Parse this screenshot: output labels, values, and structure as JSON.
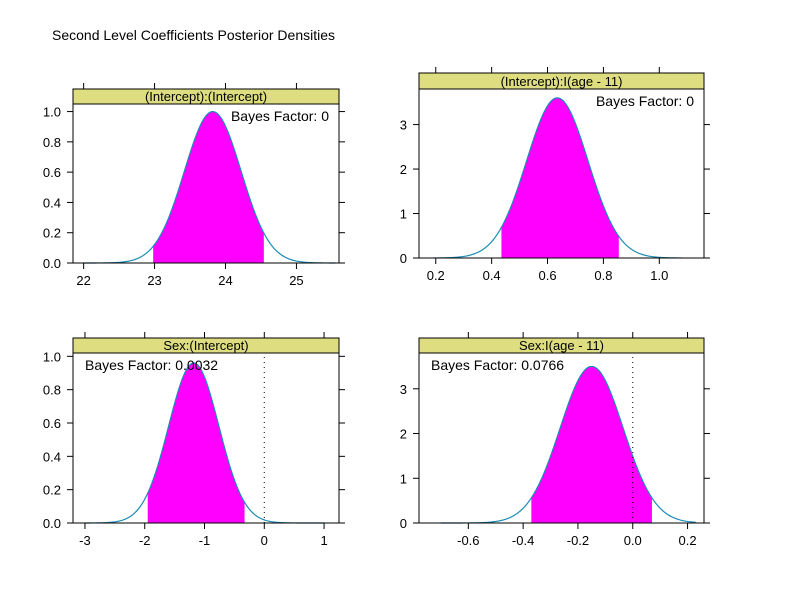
{
  "figure": {
    "title": "Second Level Coefficients Posterior Densities",
    "strip_color": "#dede80",
    "curve_color": "#1a8cb4",
    "fill_color": "#ff00ff"
  },
  "chart_data": [
    {
      "type": "area",
      "strip": "(Intercept):(Intercept)",
      "annotation": "Bayes Factor: 0",
      "annotation_position": "top-right",
      "xlim": [
        21.85,
        25.6
      ],
      "ylim": [
        0,
        1.05
      ],
      "xticks": [
        22,
        23,
        24,
        25
      ],
      "xtick_labels": [
        "22",
        "23",
        "24",
        "25"
      ],
      "yticks": [
        0,
        0.2,
        0.4,
        0.6,
        0.8,
        1.0
      ],
      "ytick_labels": [
        "0.0",
        "0.2",
        "0.4",
        "0.6",
        "0.8",
        "1.0"
      ],
      "yaxis_side": "left",
      "density": {
        "mean": 23.82,
        "sd": 0.4,
        "peak": 1.0,
        "x_range": [
          22.0,
          25.55
        ]
      },
      "interval": [
        22.98,
        24.54
      ],
      "reference_line": null
    },
    {
      "type": "area",
      "strip": "(Intercept):I(age - 11)",
      "annotation": "Bayes Factor: 0",
      "annotation_position": "top-right",
      "xlim": [
        0.14,
        1.16
      ],
      "ylim": [
        0,
        3.8
      ],
      "xticks": [
        0.2,
        0.4,
        0.6,
        0.8,
        1.0
      ],
      "xtick_labels": [
        "0.2",
        "0.4",
        "0.6",
        "0.8",
        "1.0"
      ],
      "yticks": [
        0,
        1,
        2,
        3
      ],
      "ytick_labels": [
        "0",
        "1",
        "2",
        "3"
      ],
      "yaxis_side": "left",
      "density": {
        "mean": 0.635,
        "sd": 0.11,
        "peak": 3.6,
        "x_range": [
          0.19,
          1.08
        ]
      },
      "interval": [
        0.435,
        0.855
      ],
      "reference_line": null
    },
    {
      "type": "area",
      "strip": "Sex:(Intercept)",
      "annotation": "Bayes Factor: 0.0032",
      "annotation_position": "top-left",
      "xlim": [
        -3.2,
        1.25
      ],
      "ylim": [
        0,
        1.02
      ],
      "xticks": [
        -3,
        -2,
        -1,
        0,
        1
      ],
      "xtick_labels": [
        "-3",
        "-2",
        "-1",
        "0",
        "1"
      ],
      "yticks": [
        0,
        0.2,
        0.4,
        0.6,
        0.8,
        1.0
      ],
      "ytick_labels": [
        "0.0",
        "0.2",
        "0.4",
        "0.6",
        "0.8",
        "1.0"
      ],
      "yaxis_side": "left",
      "density": {
        "mean": -1.18,
        "sd": 0.42,
        "peak": 0.96,
        "x_range": [
          -3.0,
          1.0
        ]
      },
      "interval": [
        -1.95,
        -0.33
      ],
      "reference_line": 0
    },
    {
      "type": "area",
      "strip": "Sex:I(age - 11)",
      "annotation": "Bayes Factor: 0.0766",
      "annotation_position": "top-left",
      "xlim": [
        -0.78,
        0.26
      ],
      "ylim": [
        0,
        3.8
      ],
      "xticks": [
        -0.6,
        -0.4,
        -0.2,
        0.0,
        0.2
      ],
      "xtick_labels": [
        "-0.6",
        "-0.4",
        "-0.2",
        "0.0",
        "0.2"
      ],
      "yticks": [
        0,
        1,
        2,
        3
      ],
      "ytick_labels": [
        "0",
        "1",
        "2",
        "3"
      ],
      "yaxis_side": "left",
      "density": {
        "mean": -0.15,
        "sd": 0.115,
        "peak": 3.5,
        "x_range": [
          -0.7,
          0.23
        ]
      },
      "interval": [
        -0.37,
        0.07
      ],
      "reference_line": 0
    }
  ]
}
